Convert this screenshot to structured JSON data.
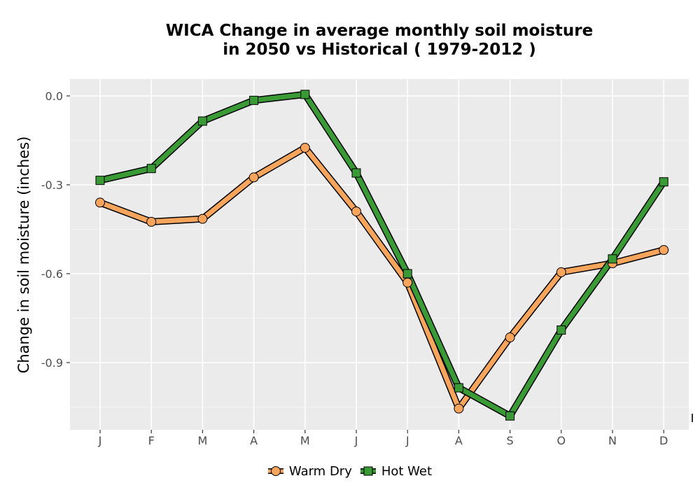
{
  "chart_data": {
    "type": "line",
    "title": "WICA  Change in average monthly soil moisture\nin 2050 vs Historical ( 1979-2012 )",
    "xlabel": "",
    "ylabel": "Change in soil moisture (inches)",
    "categories": [
      "J",
      "F",
      "M",
      "A",
      "M",
      "J",
      "J",
      "A",
      "S",
      "O",
      "N",
      "D"
    ],
    "ylim": [
      -1.13,
      0.06
    ],
    "yticks": [
      0.0,
      -0.3,
      -0.6,
      -0.9
    ],
    "ytick_labels": [
      "0.0",
      "-0.3",
      "-0.6",
      "-0.9"
    ],
    "grid": true,
    "legend_position": "bottom",
    "series": [
      {
        "name": "Warm Dry",
        "marker": "circle",
        "color": "#F7A55C",
        "values": [
          -0.36,
          -0.425,
          -0.415,
          -0.275,
          -0.175,
          -0.39,
          -0.63,
          -1.055,
          -0.815,
          -0.595,
          -0.565,
          -0.52
        ]
      },
      {
        "name": "Hot Wet",
        "marker": "square",
        "color": "#3A9A35",
        "values": [
          -0.285,
          -0.245,
          -0.085,
          -0.015,
          0.005,
          -0.26,
          -0.6,
          -0.985,
          -1.08,
          -0.79,
          -0.55,
          -0.29
        ]
      }
    ]
  }
}
